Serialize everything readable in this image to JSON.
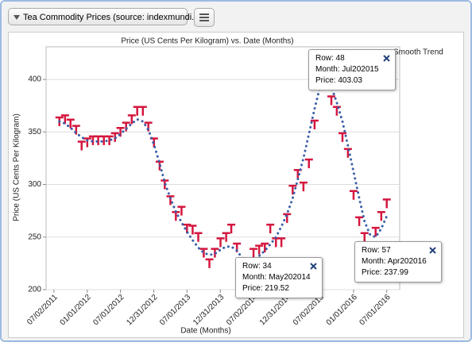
{
  "header": {
    "dropdown": "Tea Commodity Prices (source: indexmundi.com)"
  },
  "chart_data": {
    "type": "line",
    "title": "Price (US Cents Per Kilogram) vs. Date (Months)",
    "x_label": "Date (Months)",
    "y_label": "Price (US Cents Per Kilogram)",
    "x": [
      "2011-08",
      "2011-09",
      "2011-10",
      "2011-11",
      "2011-12",
      "2012-01",
      "2012-02",
      "2012-03",
      "2012-04",
      "2012-05",
      "2012-06",
      "2012-07",
      "2012-08",
      "2012-09",
      "2012-10",
      "2012-11",
      "2012-12",
      "2013-01",
      "2013-02",
      "2013-03",
      "2013-04",
      "2013-05",
      "2013-06",
      "2013-07",
      "2013-08",
      "2013-09",
      "2013-10",
      "2013-11",
      "2013-12",
      "2014-01",
      "2014-02",
      "2014-03",
      "2014-04",
      "2014-05",
      "2014-06",
      "2014-07",
      "2014-08",
      "2014-09",
      "2014-10",
      "2014-11",
      "2014-12",
      "2015-01",
      "2015-02",
      "2015-03",
      "2015-04",
      "2015-05",
      "2015-06",
      "2015-07",
      "2015-08",
      "2015-09",
      "2015-10",
      "2015-11",
      "2015-12",
      "2016-01",
      "2016-02",
      "2016-03",
      "2016-04",
      "2016-05",
      "2016-06",
      "2016-07"
    ],
    "series": [
      {
        "color": "#d4173f",
        "line_style": "markers",
        "values": [
          360,
          362,
          358,
          352,
          337,
          340,
          342,
          342,
          342,
          342,
          345,
          350,
          355,
          362,
          370,
          370,
          355,
          340,
          318,
          300,
          285,
          270,
          275,
          258,
          257,
          250,
          235,
          225,
          235,
          245,
          250,
          258,
          240,
          219.52,
          225,
          235,
          238,
          240,
          258,
          245,
          245,
          268,
          295,
          310,
          298,
          320,
          357,
          403.03,
          395,
          380,
          370,
          345,
          330,
          290,
          265,
          250,
          237.99,
          255,
          270,
          282
        ]
      },
      {
        "name": "Smooth Trend",
        "color": "#3a5ea8",
        "line_style": "dotted",
        "values": [
          360,
          358,
          354,
          349,
          345,
          342,
          341,
          341,
          341,
          342,
          344,
          348,
          353,
          358,
          362,
          360,
          352,
          338,
          320,
          302,
          287,
          274,
          264,
          255,
          247,
          240,
          235,
          233,
          234,
          238,
          241,
          241,
          237,
          230,
          227,
          228,
          232,
          237,
          243,
          250,
          260,
          272,
          287,
          305,
          325,
          348,
          372,
          393,
          400,
          393,
          378,
          360,
          337,
          312,
          287,
          265,
          252,
          250,
          258,
          270
        ]
      }
    ],
    "xlim": [
      "2011-05-20",
      "2016-09-10"
    ],
    "xticks": [
      {
        "value": "2011-07-02",
        "label": "07/02/2011"
      },
      {
        "value": "2012-01-01",
        "label": "01/01/2012"
      },
      {
        "value": "2012-07-01",
        "label": "07/01/2012"
      },
      {
        "value": "2012-12-31",
        "label": "12/31/2012"
      },
      {
        "value": "2013-07-01",
        "label": "07/01/2013"
      },
      {
        "value": "2013-12-31",
        "label": "12/31/2013"
      },
      {
        "value": "2014-07-02",
        "label": "07/02/2014"
      },
      {
        "value": "2014-12-31",
        "label": "12/31/2014"
      },
      {
        "value": "2015-07-02",
        "label": "07/02/2015"
      },
      {
        "value": "2016-01-01",
        "label": "01/01/2016"
      },
      {
        "value": "2016-07-01",
        "label": "07/01/2016"
      }
    ],
    "ylim": [
      200,
      431
    ],
    "yticks": [
      200,
      250,
      300,
      350,
      400
    ],
    "grid": true,
    "legend": "top-right",
    "tooltips": [
      {
        "row": "Row: 48",
        "month": "Month: Jul202015",
        "price": "Price: 403.03"
      },
      {
        "row": "Row: 34",
        "month": "Month: May202014",
        "price": "Price: 219.52"
      },
      {
        "row": "Row: 57",
        "month": "Month: Apr202016",
        "price": "Price: 237.99"
      }
    ]
  }
}
